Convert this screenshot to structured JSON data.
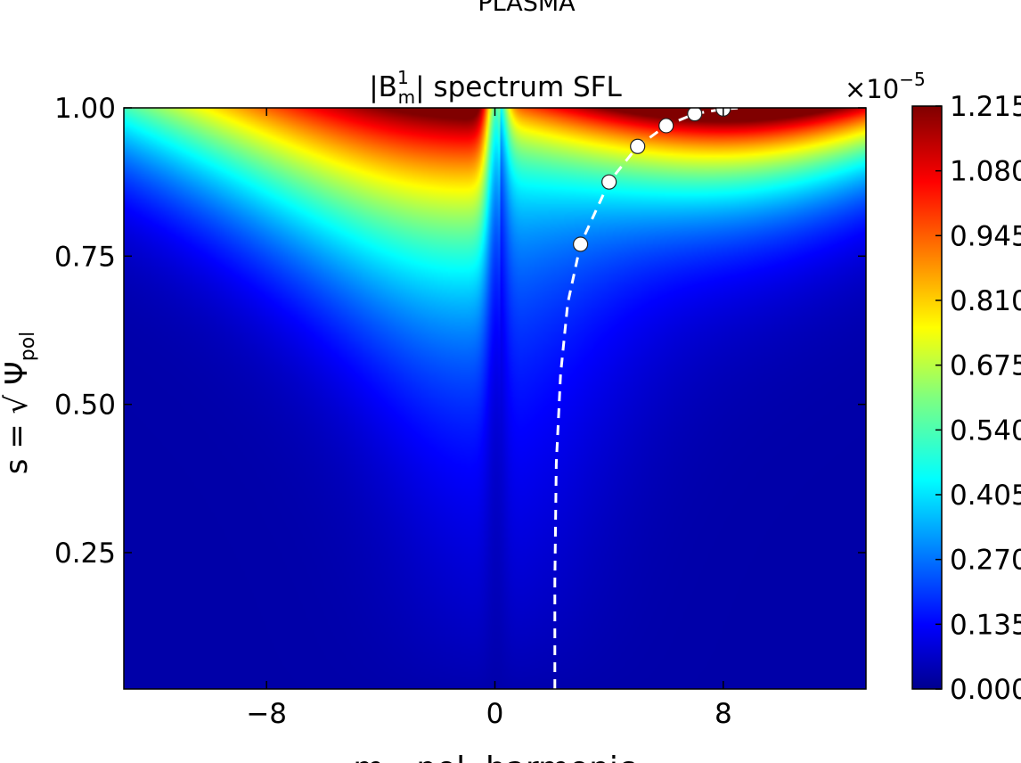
{
  "chart_data": {
    "type": "heatmap",
    "suptitle": "PLASMA",
    "title_main": "|B",
    "title_sup": "1",
    "title_sub": "m",
    "title_rest": "| spectrum SFL",
    "xlabel": "m - pol. harmonic",
    "ylabel_main": "s = √ Ψ",
    "ylabel_sub": "pol",
    "xlim": [
      -13,
      13
    ],
    "ylim": [
      0.02,
      1.0
    ],
    "x_ticks": [
      {
        "value": -8,
        "label": "−8"
      },
      {
        "value": 0,
        "label": "0"
      },
      {
        "value": 8,
        "label": "8"
      }
    ],
    "y_ticks": [
      {
        "value": 1.0,
        "label": "1.00"
      },
      {
        "value": 0.75,
        "label": "0.75"
      },
      {
        "value": 0.5,
        "label": "0.50"
      },
      {
        "value": 0.25,
        "label": "0.25"
      }
    ],
    "colorbar": {
      "multiplier_base": "×10",
      "multiplier_exp": "−5",
      "range": [
        0.0,
        1.215
      ],
      "ticks": [
        {
          "value": 1.215,
          "label": "1.215"
        },
        {
          "value": 1.08,
          "label": "1.080"
        },
        {
          "value": 0.945,
          "label": "0.945"
        },
        {
          "value": 0.81,
          "label": "0.810"
        },
        {
          "value": 0.675,
          "label": "0.675"
        },
        {
          "value": 0.54,
          "label": "0.540"
        },
        {
          "value": 0.405,
          "label": "0.405"
        },
        {
          "value": 0.27,
          "label": "0.270"
        },
        {
          "value": 0.135,
          "label": "0.135"
        },
        {
          "value": 0.0,
          "label": "0.000"
        }
      ],
      "colormap": "jet"
    },
    "resonance_curve": {
      "style": "dashed",
      "color": "#ffffff",
      "points": [
        {
          "m": 2.1,
          "s": 0.02
        },
        {
          "m": 2.1,
          "s": 0.2
        },
        {
          "m": 2.15,
          "s": 0.4
        },
        {
          "m": 2.3,
          "s": 0.55
        },
        {
          "m": 2.55,
          "s": 0.67
        },
        {
          "m": 3.0,
          "s": 0.77
        },
        {
          "m": 4.0,
          "s": 0.875
        },
        {
          "m": 5.0,
          "s": 0.935
        },
        {
          "m": 6.0,
          "s": 0.97
        },
        {
          "m": 7.0,
          "s": 0.99
        },
        {
          "m": 8.0,
          "s": 0.998
        },
        {
          "m": 8.6,
          "s": 1.0
        }
      ]
    },
    "resonant_surfaces": [
      {
        "m": 3,
        "s": 0.77
      },
      {
        "m": 4,
        "s": 0.875
      },
      {
        "m": 5,
        "s": 0.935
      },
      {
        "m": 6,
        "s": 0.97
      },
      {
        "m": 7,
        "s": 0.99
      },
      {
        "m": 8,
        "s": 0.998
      }
    ]
  }
}
